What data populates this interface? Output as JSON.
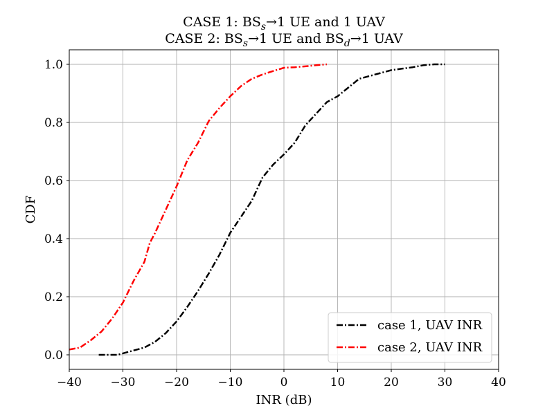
{
  "chart_data": {
    "type": "line",
    "title_line1": {
      "p1": "CASE 1: BS",
      "sub1": "s",
      "p2": "→1 UE and 1 UAV"
    },
    "title_line2": {
      "p1": "CASE 2: BS",
      "sub1": "s",
      "p2": "→1 UE and BS",
      "sub2": "d",
      "p3": "→1 UAV"
    },
    "xlabel": "INR (dB)",
    "ylabel": "CDF",
    "xlim": [
      -40,
      40
    ],
    "ylim": [
      -0.05,
      1.05
    ],
    "xticks": [
      -40,
      -30,
      -20,
      -10,
      0,
      10,
      20,
      30,
      40
    ],
    "xtick_labels": [
      "−40",
      "−30",
      "−20",
      "−10",
      "0",
      "10",
      "20",
      "30",
      "40"
    ],
    "yticks": [
      0.0,
      0.2,
      0.4,
      0.6,
      0.8,
      1.0
    ],
    "ytick_labels": [
      "0.0",
      "0.2",
      "0.4",
      "0.6",
      "0.8",
      "1.0"
    ],
    "grid": true,
    "legend_position": "lower-right",
    "series": [
      {
        "name": "case 1, UAV INR",
        "color": "#000000",
        "linestyle": "dashdot",
        "points": [
          [
            -34.5,
            0.0
          ],
          [
            -31,
            0.0
          ],
          [
            -30,
            0.005
          ],
          [
            -28,
            0.015
          ],
          [
            -26,
            0.025
          ],
          [
            -24,
            0.045
          ],
          [
            -22,
            0.075
          ],
          [
            -20,
            0.115
          ],
          [
            -18,
            0.165
          ],
          [
            -16,
            0.22
          ],
          [
            -14,
            0.28
          ],
          [
            -12,
            0.345
          ],
          [
            -10,
            0.42
          ],
          [
            -8,
            0.475
          ],
          [
            -6,
            0.53
          ],
          [
            -4,
            0.61
          ],
          [
            -2,
            0.655
          ],
          [
            0,
            0.69
          ],
          [
            2,
            0.73
          ],
          [
            4,
            0.79
          ],
          [
            6,
            0.83
          ],
          [
            8,
            0.87
          ],
          [
            10,
            0.89
          ],
          [
            12,
            0.92
          ],
          [
            14,
            0.95
          ],
          [
            16,
            0.96
          ],
          [
            18,
            0.97
          ],
          [
            20,
            0.98
          ],
          [
            22,
            0.985
          ],
          [
            24,
            0.99
          ],
          [
            26,
            0.997
          ],
          [
            28,
            1.0
          ],
          [
            30,
            1.0
          ]
        ]
      },
      {
        "name": "case 2, UAV INR",
        "color": "#ff0000",
        "linestyle": "dashdot",
        "points": [
          [
            -40,
            0.018
          ],
          [
            -38,
            0.025
          ],
          [
            -36,
            0.05
          ],
          [
            -34,
            0.08
          ],
          [
            -32,
            0.125
          ],
          [
            -30,
            0.18
          ],
          [
            -28,
            0.255
          ],
          [
            -26,
            0.32
          ],
          [
            -25,
            0.385
          ],
          [
            -24,
            0.42
          ],
          [
            -23,
            0.46
          ],
          [
            -22,
            0.5
          ],
          [
            -20,
            0.58
          ],
          [
            -18,
            0.67
          ],
          [
            -16,
            0.73
          ],
          [
            -14,
            0.805
          ],
          [
            -12,
            0.85
          ],
          [
            -10,
            0.89
          ],
          [
            -8,
            0.925
          ],
          [
            -6,
            0.95
          ],
          [
            -4,
            0.965
          ],
          [
            -2,
            0.977
          ],
          [
            0,
            0.988
          ],
          [
            2,
            0.99
          ],
          [
            4,
            0.993
          ],
          [
            6,
            0.997
          ],
          [
            8,
            1.0
          ]
        ]
      }
    ]
  }
}
